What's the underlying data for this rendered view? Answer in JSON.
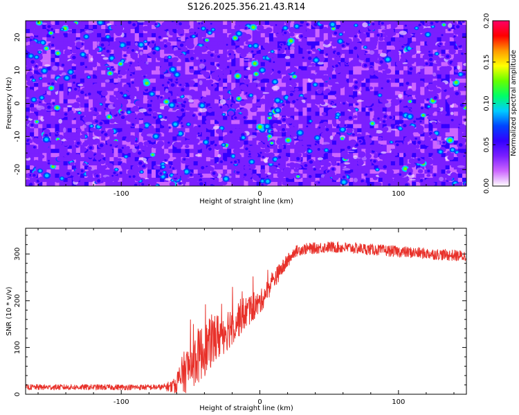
{
  "figure": {
    "title": "S126.2025.356.21.43.R14"
  },
  "chart_data": [
    {
      "type": "heatmap",
      "name": "spectrogram",
      "xlabel": "Height of straight line (km)",
      "ylabel": "Frequency (Hz)",
      "xlim": [
        -169,
        149
      ],
      "ylim": [
        -25,
        25
      ],
      "x_ticks": [
        -100,
        0,
        100
      ],
      "x_tick_labels": [
        "-100",
        "0",
        "100"
      ],
      "y_ticks": [
        -20,
        -10,
        0,
        10,
        20
      ],
      "y_tick_labels": [
        "-20",
        "-10",
        "0",
        "10",
        "20"
      ],
      "colorbar": {
        "label": "Normalized spectral amplitude",
        "range": [
          0.0,
          0.2
        ],
        "ticks": [
          0.0,
          0.05,
          0.1,
          0.15,
          0.2
        ],
        "tick_labels": [
          "0.00",
          "0.05",
          "0.10",
          "0.15",
          "0.20"
        ],
        "colormap": [
          "#ffffff",
          "#cc66ff",
          "#7a1fff",
          "#3300ff",
          "#0044ff",
          "#00ccff",
          "#00ff66",
          "#66ff00",
          "#ffff00",
          "#ff9900",
          "#ff0000",
          "#ff0066"
        ]
      },
      "description_values": {
        "background_amplitude": 0.03,
        "blob_amplitudes": [
          0.04,
          0.06,
          0.09,
          0.12
        ]
      }
    },
    {
      "type": "line",
      "name": "snr",
      "xlabel": "Height of straight line (km)",
      "ylabel": "SNR (10 * v/v)",
      "xlim": [
        -169,
        149
      ],
      "ylim": [
        0,
        355
      ],
      "x_ticks": [
        -100,
        0,
        100
      ],
      "x_tick_labels": [
        "-100",
        "0",
        "100"
      ],
      "y_ticks": [
        0,
        100,
        200,
        300
      ],
      "y_tick_labels": [
        "0",
        "100",
        "200",
        "300"
      ],
      "series": [
        {
          "name": "SNR",
          "color": "#e8312a",
          "trend_x": [
            -169,
            -100,
            -70,
            -62,
            -55,
            -45,
            -35,
            -20,
            -10,
            0,
            10,
            20,
            25,
            30,
            50,
            70,
            100,
            149
          ],
          "trend_y": [
            15,
            15,
            15,
            18,
            45,
            80,
            110,
            150,
            175,
            195,
            245,
            285,
            305,
            310,
            315,
            312,
            305,
            295
          ],
          "noise_amplitude": [
            6,
            6,
            6,
            15,
            45,
            60,
            55,
            45,
            35,
            25,
            20,
            15,
            12,
            12,
            12,
            12,
            12,
            12
          ]
        }
      ]
    }
  ]
}
